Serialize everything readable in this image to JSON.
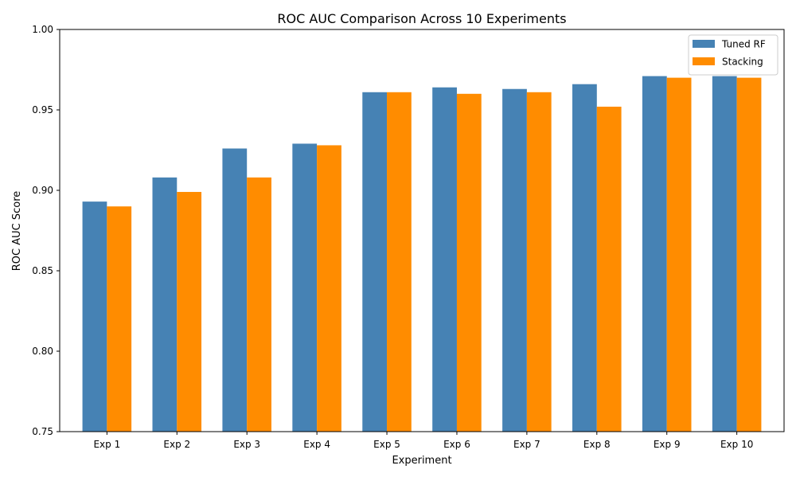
{
  "chart_data": {
    "type": "bar",
    "title": "ROC AUC Comparison Across 10 Experiments",
    "xlabel": "Experiment",
    "ylabel": "ROC AUC Score",
    "ylim": [
      0.75,
      1.0
    ],
    "yticks": [
      "0.75",
      "0.80",
      "0.85",
      "0.90",
      "0.95",
      "1.00"
    ],
    "grid": false,
    "legend_position": "top-right",
    "categories": [
      "Exp 1",
      "Exp 2",
      "Exp 3",
      "Exp 4",
      "Exp 5",
      "Exp 6",
      "Exp 7",
      "Exp 8",
      "Exp 9",
      "Exp 10"
    ],
    "series": [
      {
        "name": "Tuned RF",
        "color": "#4682b4",
        "values": [
          0.893,
          0.908,
          0.926,
          0.929,
          0.961,
          0.964,
          0.963,
          0.966,
          0.971,
          0.971
        ]
      },
      {
        "name": "Stacking",
        "color": "#ff8c00",
        "values": [
          0.89,
          0.899,
          0.908,
          0.928,
          0.961,
          0.96,
          0.961,
          0.952,
          0.97,
          0.97
        ]
      }
    ]
  }
}
